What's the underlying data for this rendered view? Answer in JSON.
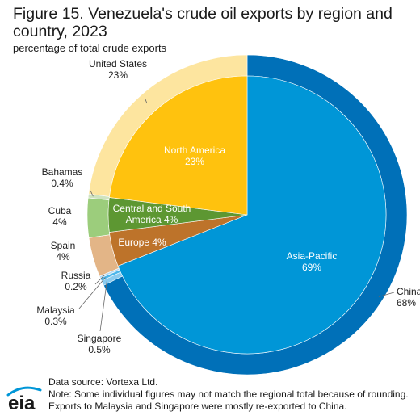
{
  "title": "Figure 15. Venezuela's crude oil exports by region and country, 2023",
  "subtitle": "percentage of total crude exports",
  "logo_text": "eia",
  "footer": {
    "source": "Data source: Vortexa Ltd.",
    "note_line1": "Note: Some individual figures may not match the regional total because of rounding.",
    "note_line2": "Exports to Malaysia and Singapore were mostly re-exported to China."
  },
  "chart_data": {
    "type": "pie",
    "title": "Figure 15. Venezuela's crude oil exports by region and country, 2023",
    "subtitle": "percentage of total crude exports",
    "regions": [
      {
        "name": "North America",
        "value_label": "23%",
        "value": 23,
        "color": "#ffc20e"
      },
      {
        "name": "Central and South America",
        "value_label": "4%",
        "value": 4,
        "color": "#5d9732"
      },
      {
        "name": "Europe",
        "value_label": "4%",
        "value": 4,
        "color": "#bd732a"
      },
      {
        "name": "Asia-Pacific",
        "value_label": "69%",
        "value": 69,
        "color": "#0096d7"
      }
    ],
    "countries": [
      {
        "name": "United States",
        "value_label": "23%",
        "value": 23,
        "color": "#fde59f"
      },
      {
        "name": "Bahamas",
        "value_label": "0.4%",
        "value": 0.4,
        "color": "#cfe3c0"
      },
      {
        "name": "Cuba",
        "value_label": "4%",
        "value": 4,
        "color": "#9ccd7c"
      },
      {
        "name": "Spain",
        "value_label": "4%",
        "value": 4,
        "color": "#e3b587"
      },
      {
        "name": "Russia",
        "value_label": "0.2%",
        "value": 0.2,
        "color": "#b3d9f3"
      },
      {
        "name": "Malaysia",
        "value_label": "0.3%",
        "value": 0.3,
        "color": "#4cb6ea"
      },
      {
        "name": "Singapore",
        "value_label": "0.5%",
        "value": 0.5,
        "color": "#8acbef"
      },
      {
        "name": "China",
        "value_label": "68%",
        "value": 68,
        "color": "#0070b8"
      }
    ]
  }
}
